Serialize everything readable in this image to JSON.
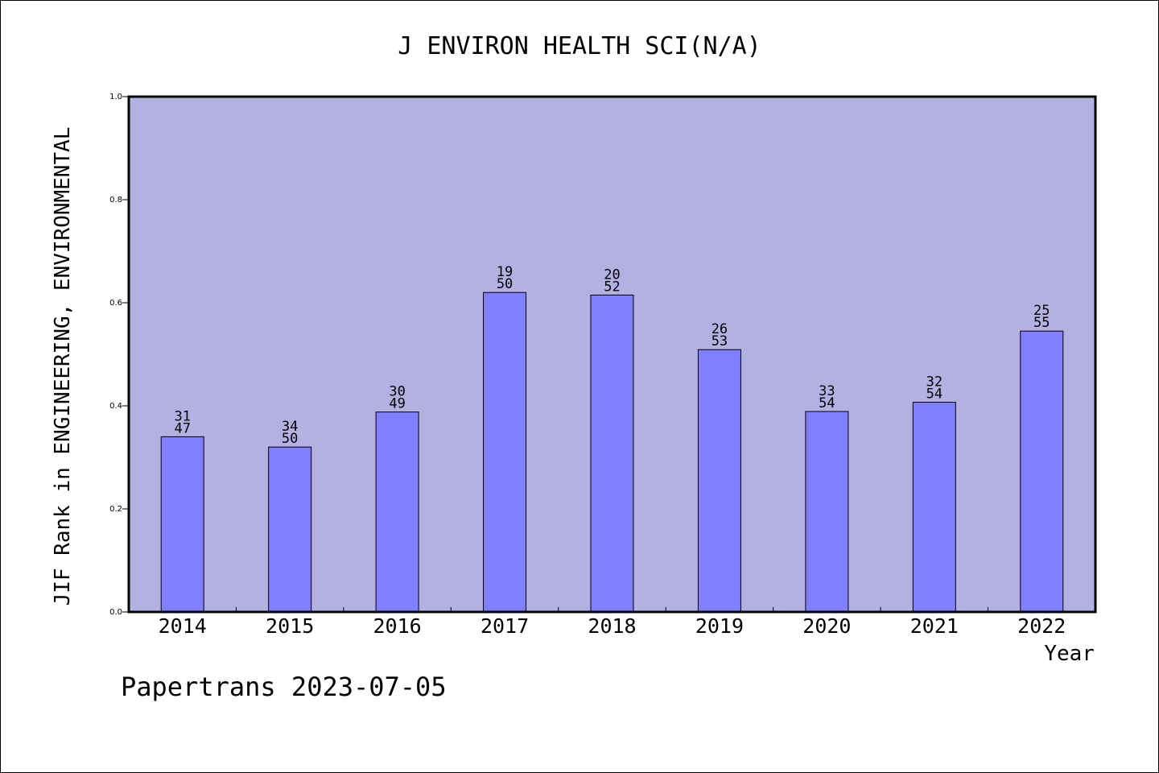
{
  "chart_data": {
    "type": "bar",
    "title": "J ENVIRON HEALTH SCI(N/A)",
    "ylabel": "JIF Rank in ENGINEERING, ENVIRONMENTAL",
    "xlabel": "Year",
    "ylim": [
      0,
      1.0
    ],
    "yticks": [
      "0.0",
      "0.2",
      "0.4",
      "0.6",
      "0.8",
      "1.0"
    ],
    "categories": [
      "2014",
      "2015",
      "2016",
      "2017",
      "2018",
      "2019",
      "2020",
      "2021",
      "2022"
    ],
    "values": [
      0.34,
      0.32,
      0.388,
      0.62,
      0.615,
      0.509,
      0.389,
      0.407,
      0.545
    ],
    "rank": [
      "31",
      "34",
      "30",
      "19",
      "20",
      "26",
      "33",
      "32",
      "25"
    ],
    "total": [
      "47",
      "50",
      "49",
      "50",
      "52",
      "53",
      "54",
      "54",
      "55"
    ],
    "grid": false,
    "colors": {
      "plot_background": "#b5b0e2",
      "bar_fill": "#8080ff",
      "bar_edge": "#000000"
    }
  },
  "footer": {
    "credit": "Papertrans 2023-07-05"
  }
}
